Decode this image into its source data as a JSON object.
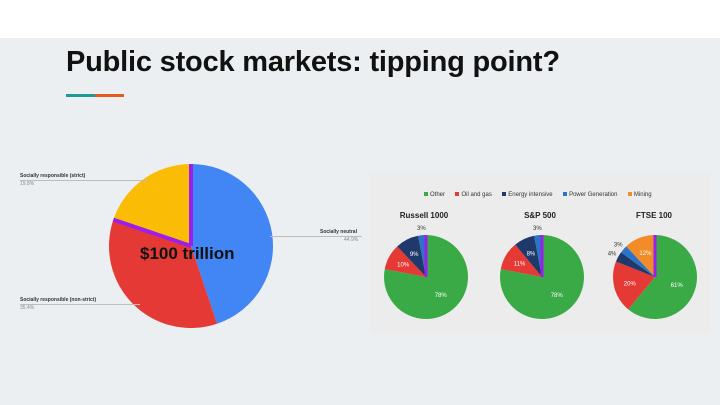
{
  "slide": {
    "title": "Public stock markets: tipping point?",
    "accent_colors": [
      "#1a9b94",
      "#e65a1c"
    ]
  },
  "main_chart": {
    "center_label": "$100 trillion",
    "outline_color": "#9b1df0"
  },
  "chart_data": [
    {
      "type": "pie",
      "title": "",
      "slices": [
        {
          "label": "Socially neutral",
          "value": 44.9,
          "value_text": "44.9%",
          "color": "#4285f4"
        },
        {
          "label": "Socially responsible (non-strict)",
          "value": 35.4,
          "value_text": "35.4%",
          "color": "#e53935"
        },
        {
          "label": "Socially responsible (strict)",
          "value": 19.8,
          "value_text": "19.8%",
          "color": "#fbbc05"
        }
      ]
    },
    {
      "type": "pie",
      "title": "Russell 1000",
      "slices": [
        {
          "label": "Other",
          "value": 78,
          "value_text": "78%",
          "color": "#3aaa46"
        },
        {
          "label": "Oil and gas",
          "value": 10,
          "value_text": "10%",
          "color": "#e53935"
        },
        {
          "label": "Energy intensive",
          "value": 9,
          "value_text": "9%",
          "color": "#1f3a6a"
        },
        {
          "label": "Power Generation",
          "value": 3,
          "value_text": "3%",
          "color": "#2b73c8"
        }
      ]
    },
    {
      "type": "pie",
      "title": "S&P 500",
      "slices": [
        {
          "label": "Other",
          "value": 78,
          "value_text": "78%",
          "color": "#3aaa46"
        },
        {
          "label": "Oil and gas",
          "value": 11,
          "value_text": "11%",
          "color": "#e53935"
        },
        {
          "label": "Energy intensive",
          "value": 8,
          "value_text": "8%",
          "color": "#1f3a6a"
        },
        {
          "label": "Power Generation",
          "value": 3,
          "value_text": "3%",
          "color": "#2b73c8"
        }
      ]
    },
    {
      "type": "pie",
      "title": "FTSE 100",
      "slices": [
        {
          "label": "Other",
          "value": 61,
          "value_text": "61%",
          "color": "#3aaa46"
        },
        {
          "label": "Oil and gas",
          "value": 20,
          "value_text": "20%",
          "color": "#e53935"
        },
        {
          "label": "Energy intensive",
          "value": 4,
          "value_text": "4%",
          "color": "#1f3a6a"
        },
        {
          "label": "Power Generation",
          "value": 3,
          "value_text": "3%",
          "color": "#2b73c8"
        },
        {
          "label": "Mining",
          "value": 12,
          "value_text": "12%",
          "color": "#f28c28"
        }
      ]
    }
  ],
  "legend": [
    {
      "label": "Other",
      "color": "#3aaa46"
    },
    {
      "label": "Oil and gas",
      "color": "#e53935"
    },
    {
      "label": "Energy intensive",
      "color": "#1f3a6a"
    },
    {
      "label": "Power Generation",
      "color": "#2b73c8"
    },
    {
      "label": "Mining",
      "color": "#f28c28"
    }
  ]
}
